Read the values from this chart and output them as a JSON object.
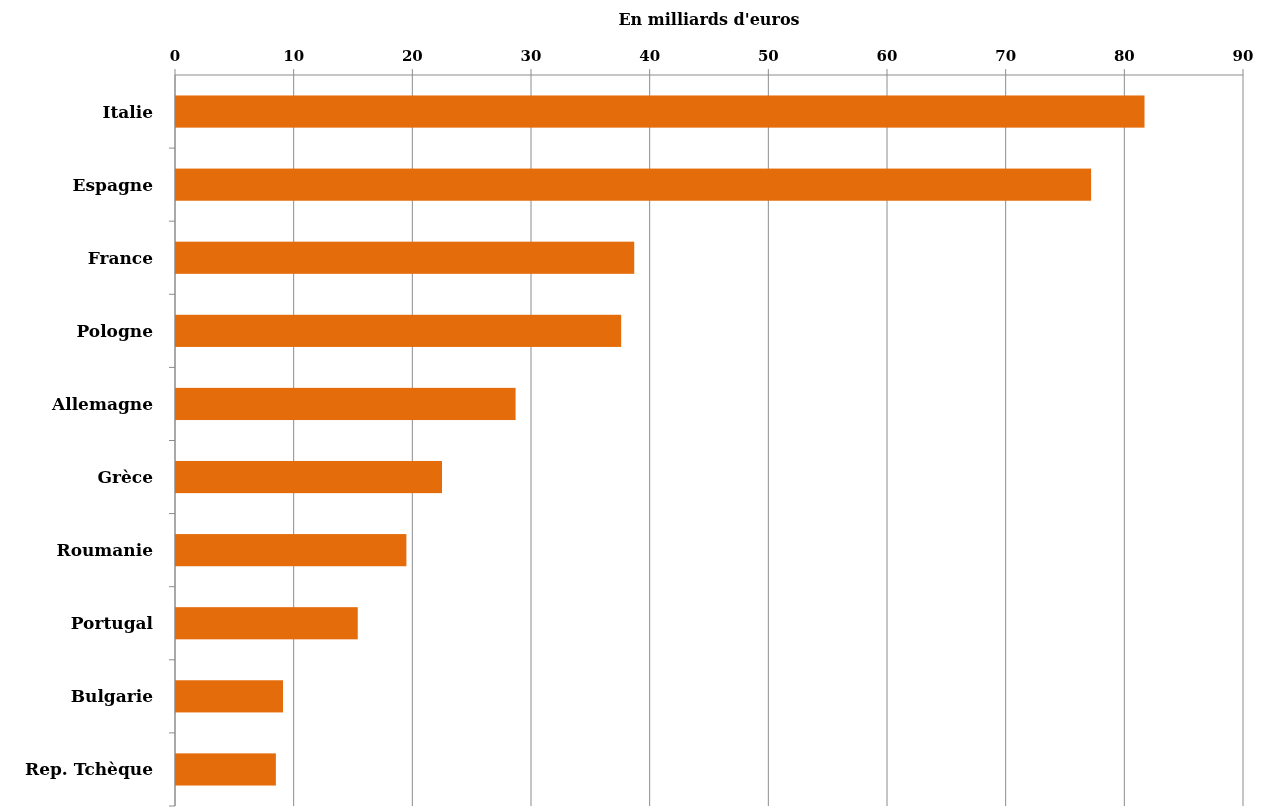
{
  "chart_data": {
    "type": "bar",
    "orientation": "horizontal",
    "xlabel": "En milliards d'euros",
    "categories": [
      "Italie",
      "Espagne",
      "France",
      "Pologne",
      "Allemagne",
      "Grèce",
      "Roumanie",
      "Portugal",
      "Bulgarie",
      "Rep. Tchèque"
    ],
    "values": [
      81.7,
      77.2,
      38.7,
      37.6,
      28.7,
      22.5,
      19.5,
      15.4,
      9.1,
      8.5
    ],
    "color": "#e46c0a",
    "xlim": [
      0,
      90
    ],
    "xticks": [
      0,
      10,
      20,
      30,
      40,
      50,
      60,
      70,
      80,
      90
    ],
    "grid": "x"
  }
}
